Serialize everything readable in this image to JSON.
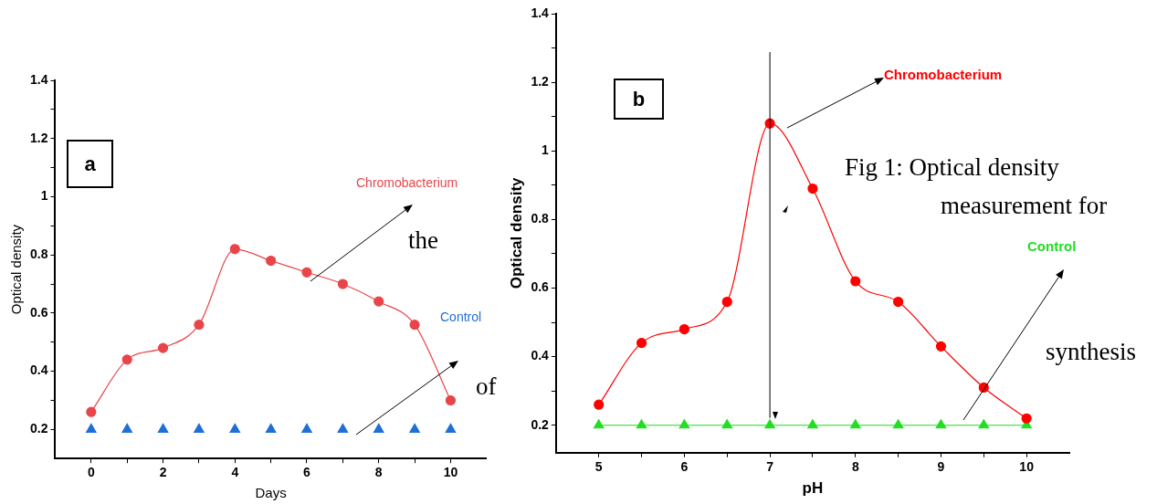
{
  "chart_data": [
    {
      "type": "line",
      "xlabel": "Days",
      "ylabel": "Optical density",
      "x": [
        0,
        1,
        2,
        3,
        4,
        5,
        6,
        7,
        8,
        9,
        10
      ],
      "xlim": [
        -1,
        11
      ],
      "ylim": [
        0.1,
        1.4
      ],
      "xticks": [
        0,
        {
          "value": 1,
          "label": null
        },
        2,
        {
          "value": 3,
          "label": null
        },
        4,
        {
          "value": 5,
          "label": null
        },
        6,
        {
          "value": 7,
          "label": null
        },
        8,
        {
          "value": 9,
          "label": null
        },
        10
      ],
      "yticks": [
        0.2,
        {
          "value": 0.3,
          "label": null
        },
        0.4,
        {
          "value": 0.5,
          "label": null
        },
        0.6,
        {
          "value": 0.7,
          "label": null
        },
        0.8,
        {
          "value": 0.9,
          "label": null
        },
        1.0,
        {
          "value": 1.1,
          "label": null
        },
        1.2,
        {
          "value": 1.3,
          "label": null
        },
        1.4
      ],
      "grid": false,
      "legend": false,
      "series": [
        {
          "name": "Chromobacterium",
          "marker": "circle",
          "color": "#e8454a",
          "values": [
            0.26,
            0.44,
            0.48,
            0.56,
            0.82,
            0.78,
            0.74,
            0.7,
            0.64,
            0.56,
            0.3
          ]
        },
        {
          "name": "Control",
          "type": "scatter",
          "marker": "triangle",
          "color": "#1f6fd6",
          "values": [
            0.2,
            0.2,
            0.2,
            0.2,
            0.2,
            0.2,
            0.2,
            0.2,
            0.2,
            0.2,
            0.2
          ]
        }
      ],
      "annotations": [
        "a",
        "the",
        "of"
      ]
    },
    {
      "type": "line",
      "xlabel": "pH",
      "ylabel": "Optical density",
      "x": [
        5,
        5.5,
        6,
        6.5,
        7,
        7.5,
        8,
        8.5,
        9,
        9.5,
        10
      ],
      "xlim": [
        4.5,
        10.5
      ],
      "ylim": [
        0.12,
        1.4
      ],
      "xticks": [
        5,
        {
          "value": 5.5,
          "label": null
        },
        6,
        {
          "value": 6.5,
          "label": null
        },
        7,
        {
          "value": 7.5,
          "label": null
        },
        8,
        {
          "value": 8.5,
          "label": null
        },
        9,
        {
          "value": 9.5,
          "label": null
        },
        10
      ],
      "yticks": [
        0.2,
        {
          "value": 0.3,
          "label": null
        },
        0.4,
        {
          "value": 0.5,
          "label": null
        },
        0.6,
        {
          "value": 0.7,
          "label": null
        },
        0.8,
        {
          "value": 0.9,
          "label": null
        },
        1.0,
        {
          "value": 1.1,
          "label": null
        },
        1.2,
        {
          "value": 1.3,
          "label": null
        },
        1.4
      ],
      "grid": false,
      "legend": false,
      "series": [
        {
          "name": "Chromobacterium",
          "marker": "circle",
          "color": "#ff0000",
          "values": [
            0.26,
            0.44,
            0.48,
            0.56,
            1.08,
            0.89,
            0.62,
            0.56,
            0.43,
            0.31,
            0.22
          ]
        },
        {
          "name": "Control",
          "marker": "triangle",
          "color": "#22dd22",
          "values": [
            0.2,
            0.2,
            0.2,
            0.2,
            0.2,
            0.2,
            0.2,
            0.2,
            0.2,
            0.2,
            0.2
          ]
        }
      ],
      "ref_lines": [
        {
          "axis": "x",
          "value": 7,
          "color": "#000000"
        }
      ],
      "annotations": [
        "b",
        "Fig 1: Optical density",
        "measurement for",
        "synthesis"
      ]
    }
  ]
}
